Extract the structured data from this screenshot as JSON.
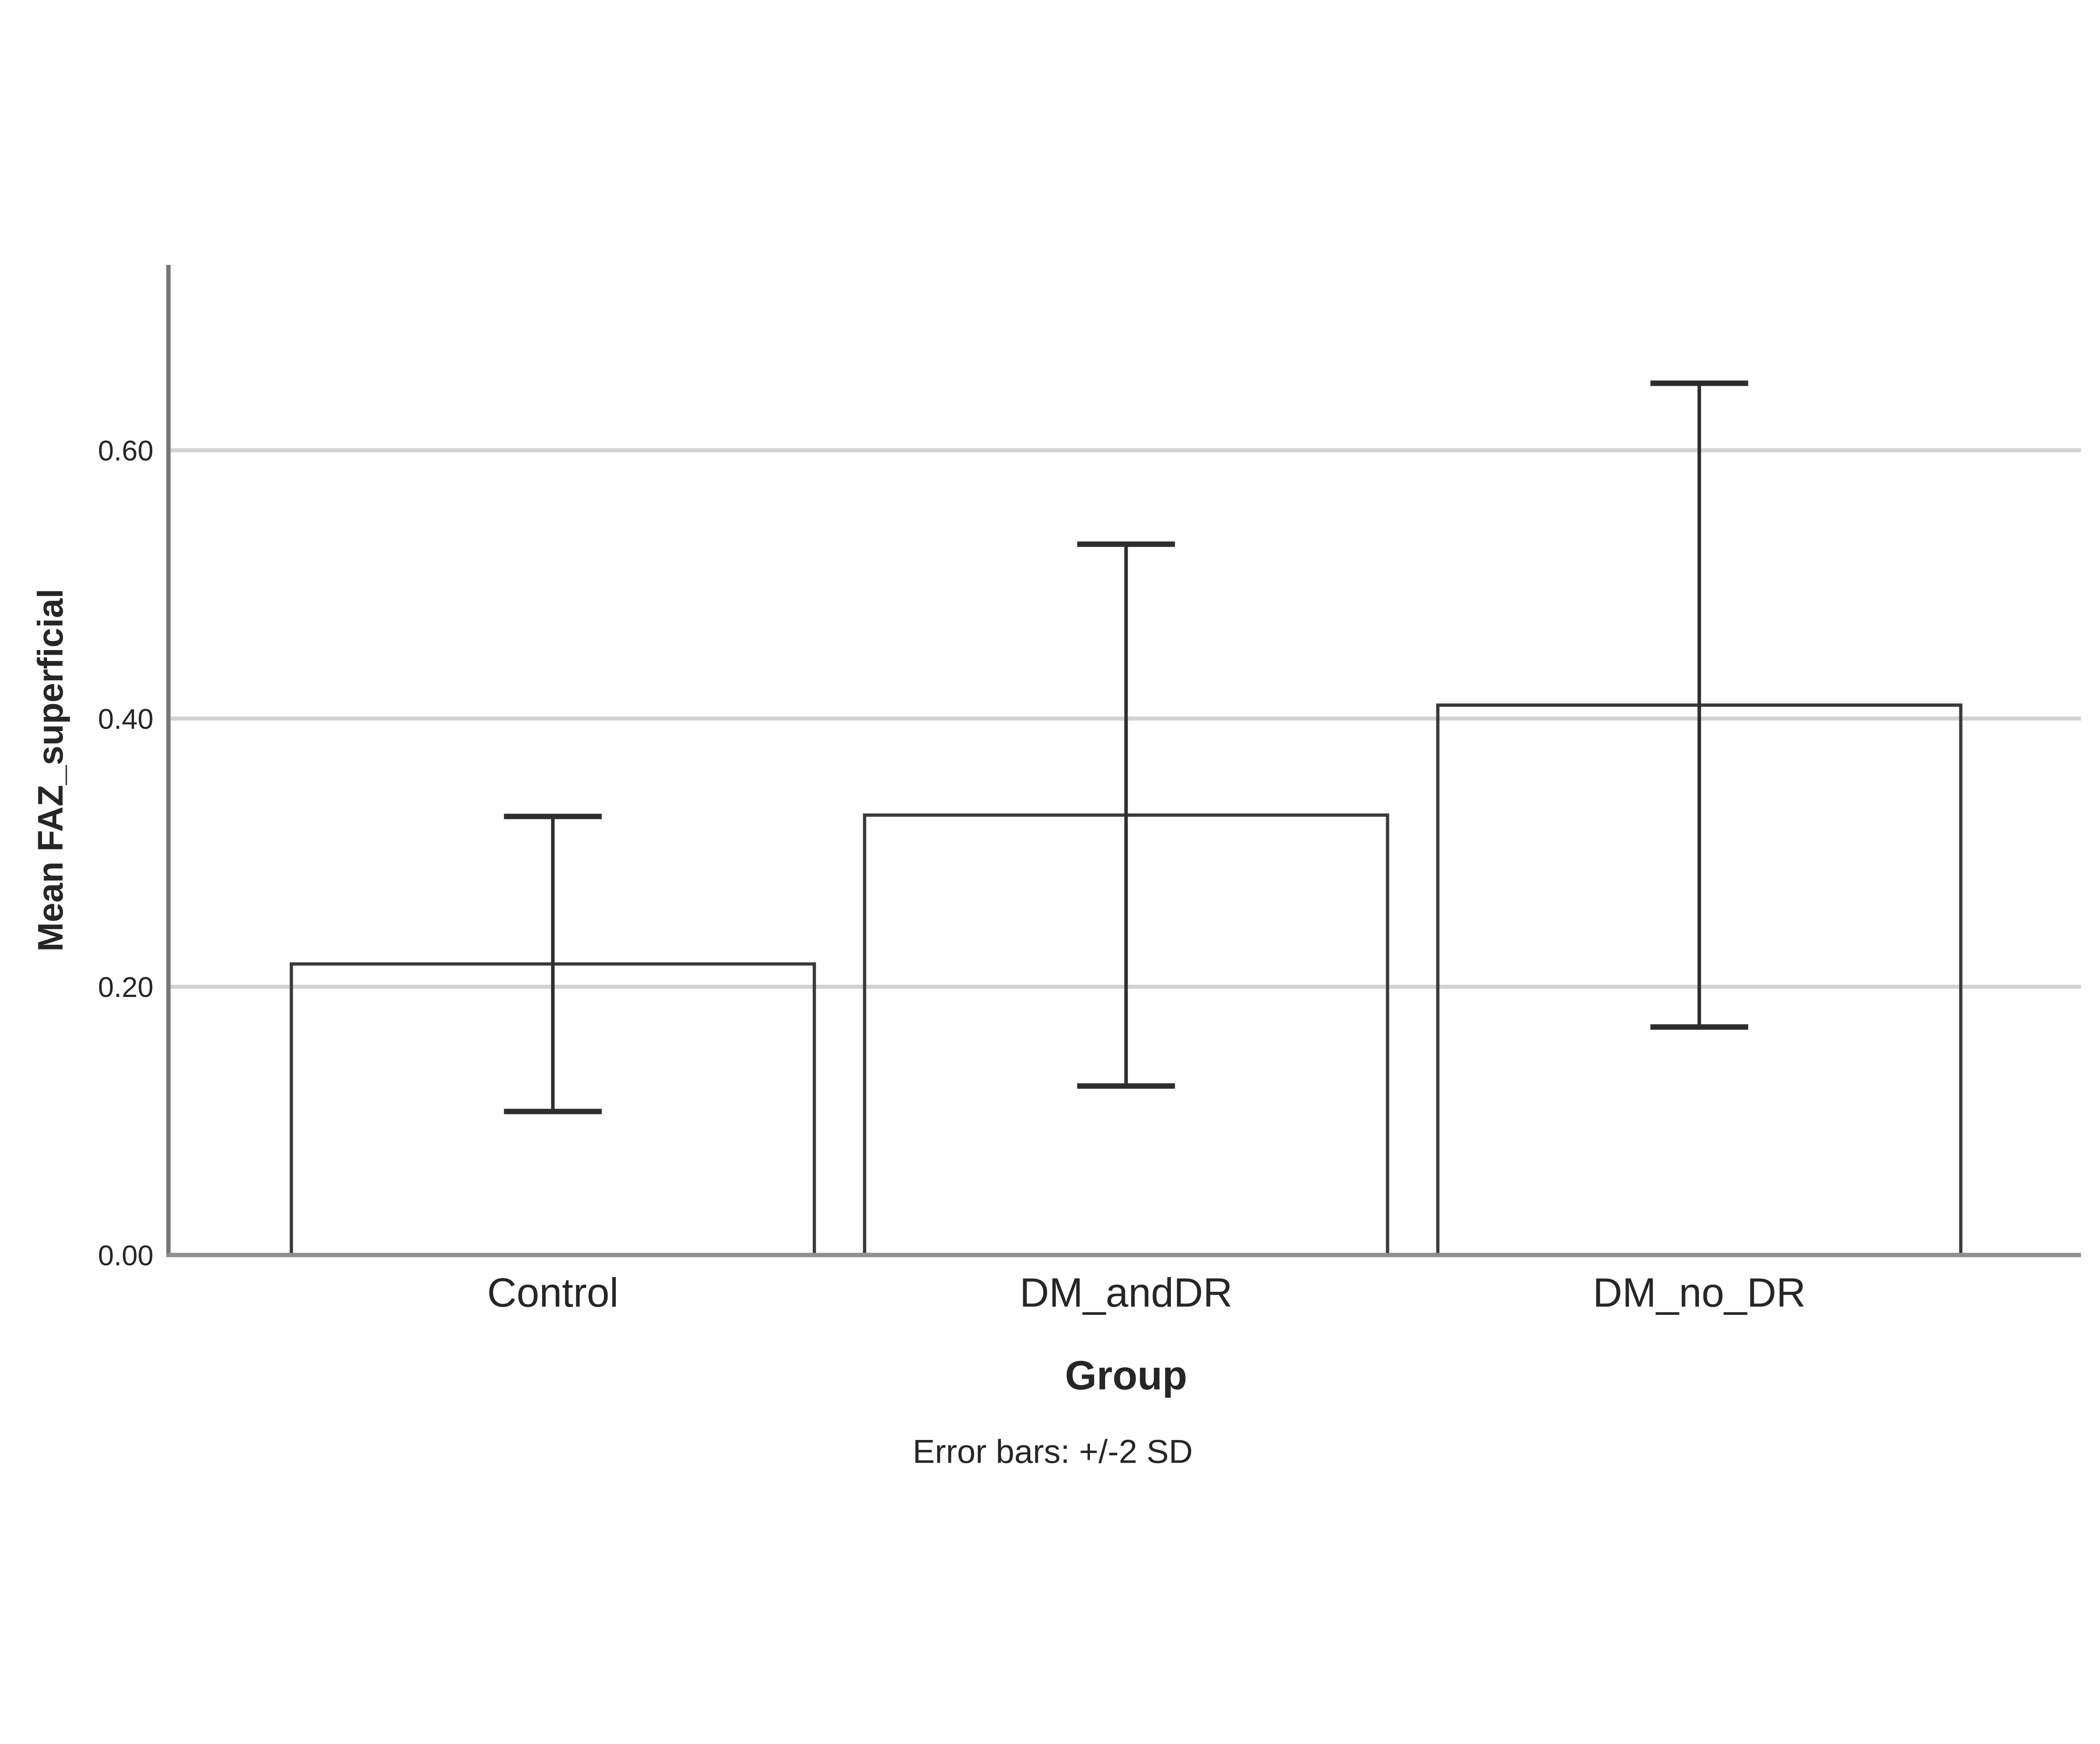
{
  "figure": {
    "background": "#ffffff"
  },
  "chart_data": {
    "type": "bar",
    "title": "",
    "xlabel": "Group",
    "ylabel": "Mean FAZ_superficial",
    "footnote": "Error bars: +/-2 SD",
    "categories": [
      "Control",
      "DM_andDR",
      "DM_no_DR"
    ],
    "series": [
      {
        "name": "Mean FAZ_superficial",
        "values": [
          0.217,
          0.328,
          0.41
        ]
      }
    ],
    "error_bars": {
      "kind": "+/-2 SD",
      "upper": [
        0.327,
        0.53,
        0.65
      ],
      "lower": [
        0.107,
        0.126,
        0.17
      ]
    },
    "yticks": [
      "0.00",
      "0.20",
      "0.40",
      "0.60"
    ],
    "ytick_values": [
      0.0,
      0.2,
      0.4,
      0.6
    ],
    "ylim": [
      0.0,
      0.74
    ],
    "grid": "horizontal",
    "legend": "none",
    "colors": {
      "background": "#ffffff",
      "text": "#262626",
      "y_axis": "#767676",
      "x_axis": "#8f8f8f",
      "gridline": "#d2d2d2",
      "bar_fill": "#ffffff",
      "bar_border": "#3a3a3a",
      "error_bar": "#2e2e2e"
    }
  }
}
